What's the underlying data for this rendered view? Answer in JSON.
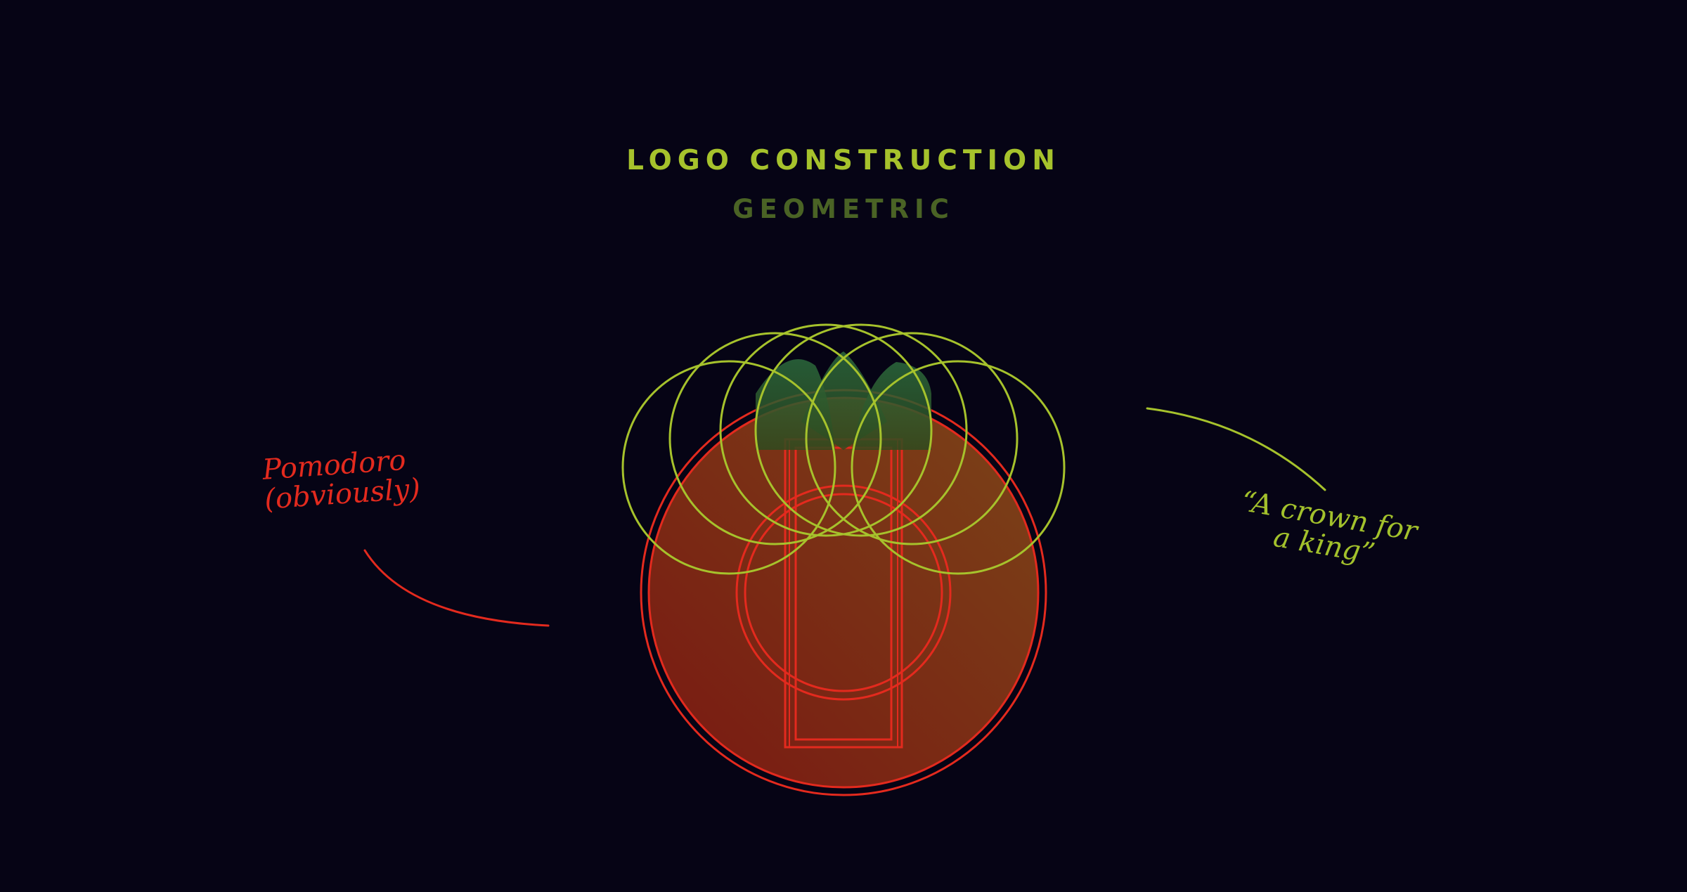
{
  "header": {
    "title": "LOGO CONSTRUCTION",
    "subtitle": "GEOMETRIC"
  },
  "annotations": {
    "left_note": "Pomodoro\n(obviously)",
    "right_note": "“A crown for\na king”"
  },
  "colors": {
    "background": "#060415",
    "crown_stroke": "#a6c22c",
    "tomato_stroke": "#e32a1e",
    "tomato_fill_top": "#7a4418",
    "tomato_fill_bottom": "#7a1812",
    "leaf_fill_top": "#2c6a3c",
    "leaf_fill_bottom": "#2e4a1e",
    "subtitle": "#4a6325"
  }
}
